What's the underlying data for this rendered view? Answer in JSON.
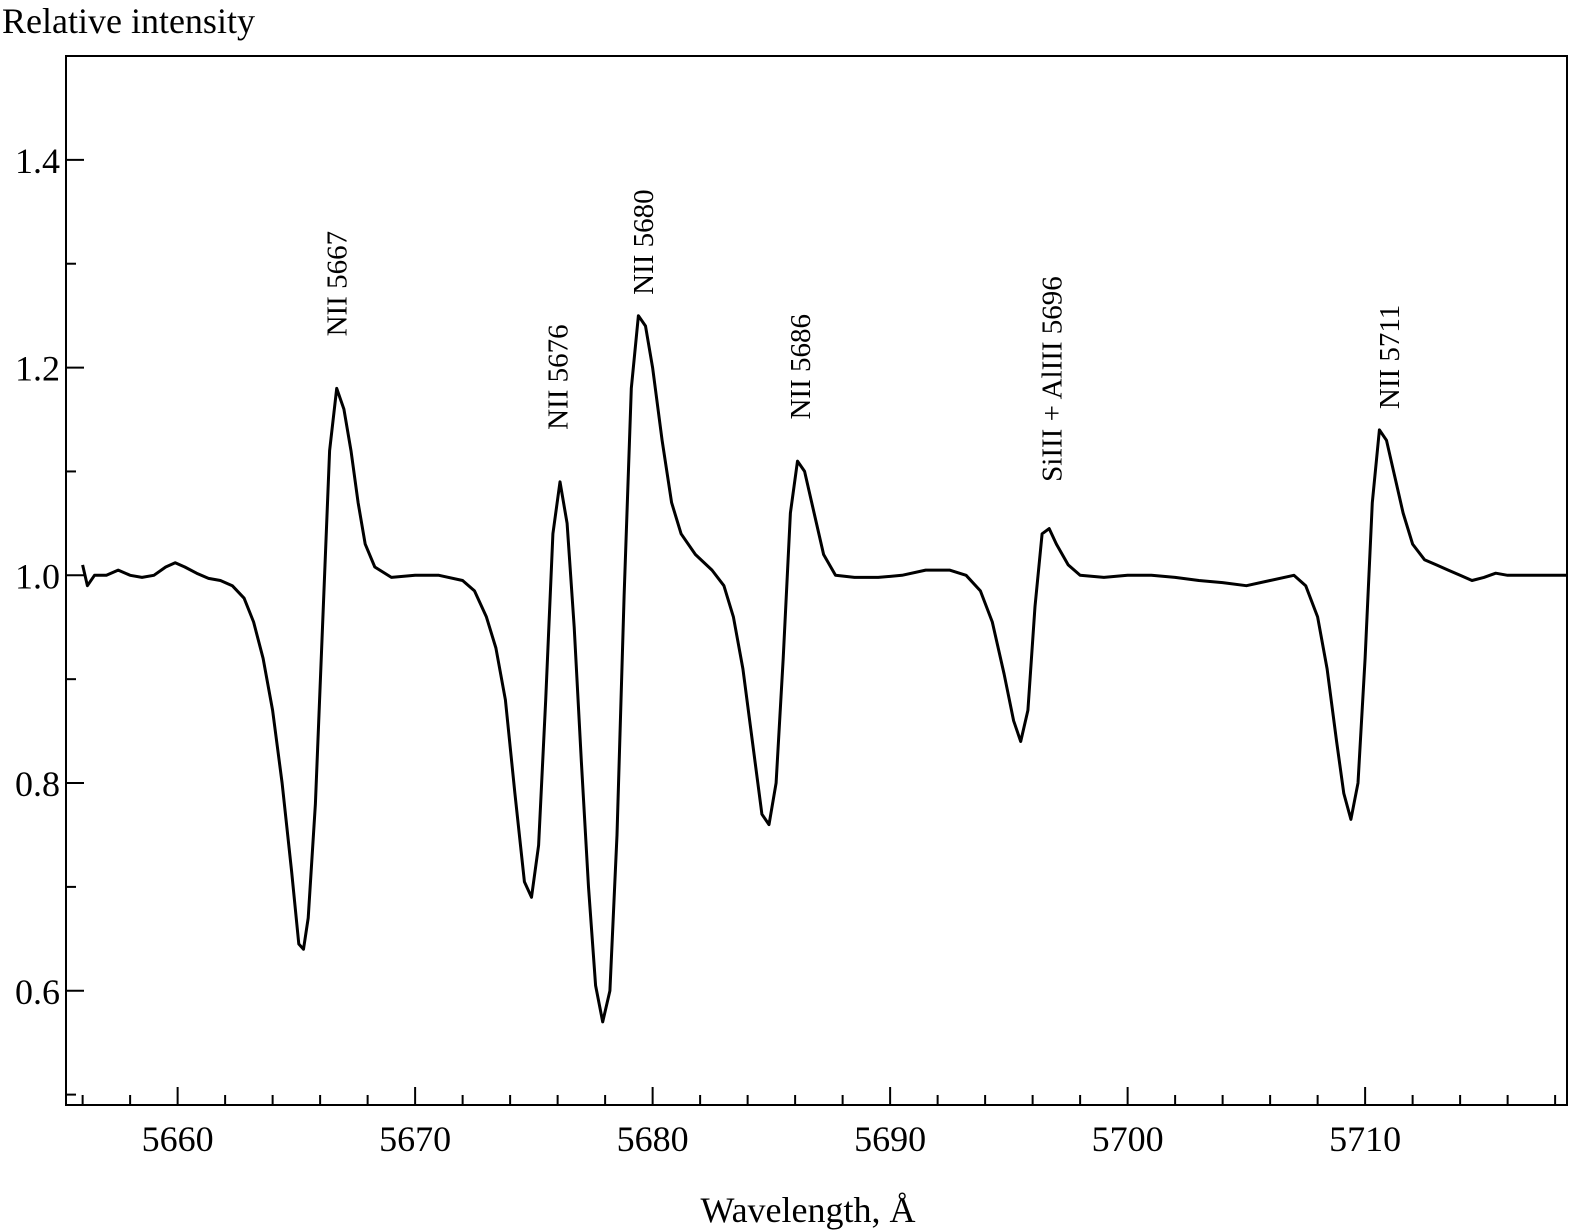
{
  "chart_data": {
    "type": "line",
    "title": "",
    "xlabel": "Wavelength, Å",
    "ylabel": "Relative intensity",
    "xlim": [
      5655.3,
      5718.5
    ],
    "ylim": [
      0.49,
      1.5
    ],
    "grid": false,
    "legend": "none",
    "x_ticks": {
      "major": [
        5660,
        5670,
        5680,
        5690,
        5700,
        5710
      ],
      "minor_step": 2,
      "labels": [
        "5660",
        "5670",
        "5680",
        "5690",
        "5700",
        "5710"
      ]
    },
    "y_ticks": {
      "major": [
        0.6,
        0.8,
        1.0,
        1.2,
        1.4
      ],
      "minor_step": 0.1,
      "labels": [
        "0.6",
        "0.8",
        "1.0",
        "1.2",
        "1.4"
      ]
    },
    "series": [
      {
        "color": "#000000",
        "points": [
          [
            5656.0,
            1.01
          ],
          [
            5656.2,
            0.99
          ],
          [
            5656.5,
            1.0
          ],
          [
            5657.0,
            1.0
          ],
          [
            5657.5,
            1.005
          ],
          [
            5658.0,
            1.0
          ],
          [
            5658.5,
            0.998
          ],
          [
            5659.0,
            1.0
          ],
          [
            5659.5,
            1.008
          ],
          [
            5659.9,
            1.012
          ],
          [
            5660.3,
            1.008
          ],
          [
            5660.8,
            1.002
          ],
          [
            5661.3,
            0.997
          ],
          [
            5661.8,
            0.995
          ],
          [
            5662.3,
            0.99
          ],
          [
            5662.8,
            0.978
          ],
          [
            5663.2,
            0.955
          ],
          [
            5663.6,
            0.92
          ],
          [
            5664.0,
            0.87
          ],
          [
            5664.4,
            0.8
          ],
          [
            5664.8,
            0.715
          ],
          [
            5665.1,
            0.645
          ],
          [
            5665.3,
            0.64
          ],
          [
            5665.5,
            0.67
          ],
          [
            5665.8,
            0.78
          ],
          [
            5666.1,
            0.95
          ],
          [
            5666.4,
            1.12
          ],
          [
            5666.7,
            1.18
          ],
          [
            5667.0,
            1.16
          ],
          [
            5667.3,
            1.12
          ],
          [
            5667.6,
            1.07
          ],
          [
            5667.9,
            1.03
          ],
          [
            5668.3,
            1.008
          ],
          [
            5669.0,
            0.998
          ],
          [
            5670.0,
            1.0
          ],
          [
            5671.0,
            1.0
          ],
          [
            5672.0,
            0.995
          ],
          [
            5672.5,
            0.985
          ],
          [
            5673.0,
            0.96
          ],
          [
            5673.4,
            0.93
          ],
          [
            5673.8,
            0.88
          ],
          [
            5674.2,
            0.79
          ],
          [
            5674.6,
            0.705
          ],
          [
            5674.9,
            0.69
          ],
          [
            5675.2,
            0.74
          ],
          [
            5675.5,
            0.88
          ],
          [
            5675.8,
            1.04
          ],
          [
            5676.1,
            1.09
          ],
          [
            5676.4,
            1.05
          ],
          [
            5676.7,
            0.95
          ],
          [
            5677.0,
            0.82
          ],
          [
            5677.3,
            0.7
          ],
          [
            5677.6,
            0.605
          ],
          [
            5677.9,
            0.57
          ],
          [
            5678.2,
            0.6
          ],
          [
            5678.5,
            0.75
          ],
          [
            5678.8,
            0.98
          ],
          [
            5679.1,
            1.18
          ],
          [
            5679.4,
            1.25
          ],
          [
            5679.7,
            1.24
          ],
          [
            5680.0,
            1.2
          ],
          [
            5680.4,
            1.13
          ],
          [
            5680.8,
            1.07
          ],
          [
            5681.2,
            1.04
          ],
          [
            5681.8,
            1.02
          ],
          [
            5682.5,
            1.005
          ],
          [
            5683.0,
            0.99
          ],
          [
            5683.4,
            0.96
          ],
          [
            5683.8,
            0.91
          ],
          [
            5684.2,
            0.84
          ],
          [
            5684.6,
            0.77
          ],
          [
            5684.9,
            0.76
          ],
          [
            5685.2,
            0.8
          ],
          [
            5685.5,
            0.92
          ],
          [
            5685.8,
            1.06
          ],
          [
            5686.1,
            1.11
          ],
          [
            5686.4,
            1.1
          ],
          [
            5686.8,
            1.06
          ],
          [
            5687.2,
            1.02
          ],
          [
            5687.7,
            1.0
          ],
          [
            5688.5,
            0.998
          ],
          [
            5689.5,
            0.998
          ],
          [
            5690.5,
            1.0
          ],
          [
            5691.5,
            1.005
          ],
          [
            5692.5,
            1.005
          ],
          [
            5693.2,
            1.0
          ],
          [
            5693.8,
            0.985
          ],
          [
            5694.3,
            0.955
          ],
          [
            5694.8,
            0.905
          ],
          [
            5695.2,
            0.86
          ],
          [
            5695.5,
            0.84
          ],
          [
            5695.8,
            0.87
          ],
          [
            5696.1,
            0.97
          ],
          [
            5696.4,
            1.04
          ],
          [
            5696.7,
            1.045
          ],
          [
            5697.0,
            1.03
          ],
          [
            5697.5,
            1.01
          ],
          [
            5698.0,
            1.0
          ],
          [
            5699.0,
            0.998
          ],
          [
            5700.0,
            1.0
          ],
          [
            5701.0,
            1.0
          ],
          [
            5702.0,
            0.998
          ],
          [
            5703.0,
            0.995
          ],
          [
            5704.0,
            0.993
          ],
          [
            5705.0,
            0.99
          ],
          [
            5706.0,
            0.995
          ],
          [
            5707.0,
            1.0
          ],
          [
            5707.5,
            0.99
          ],
          [
            5708.0,
            0.96
          ],
          [
            5708.4,
            0.91
          ],
          [
            5708.8,
            0.84
          ],
          [
            5709.1,
            0.79
          ],
          [
            5709.4,
            0.765
          ],
          [
            5709.7,
            0.8
          ],
          [
            5710.0,
            0.92
          ],
          [
            5710.3,
            1.07
          ],
          [
            5710.6,
            1.14
          ],
          [
            5710.9,
            1.13
          ],
          [
            5711.2,
            1.1
          ],
          [
            5711.6,
            1.06
          ],
          [
            5712.0,
            1.03
          ],
          [
            5712.5,
            1.015
          ],
          [
            5713.0,
            1.01
          ],
          [
            5713.5,
            1.005
          ],
          [
            5714.0,
            1.0
          ],
          [
            5714.5,
            0.995
          ],
          [
            5715.0,
            0.998
          ],
          [
            5715.5,
            1.002
          ],
          [
            5716.0,
            1.0
          ],
          [
            5717.0,
            1.0
          ],
          [
            5718.0,
            1.0
          ],
          [
            5718.5,
            1.0
          ]
        ]
      }
    ],
    "annotations": [
      {
        "text": "NII 5667",
        "x": 5666.7,
        "y": 1.23
      },
      {
        "text": "NII 5676",
        "x": 5676.0,
        "y": 1.14
      },
      {
        "text": "NII 5680",
        "x": 5679.6,
        "y": 1.27
      },
      {
        "text": "NII 5686",
        "x": 5686.2,
        "y": 1.15
      },
      {
        "text": "SiIII + AlIII 5696",
        "x": 5696.8,
        "y": 1.09
      },
      {
        "text": "NII 5711",
        "x": 5711.0,
        "y": 1.16
      }
    ]
  }
}
